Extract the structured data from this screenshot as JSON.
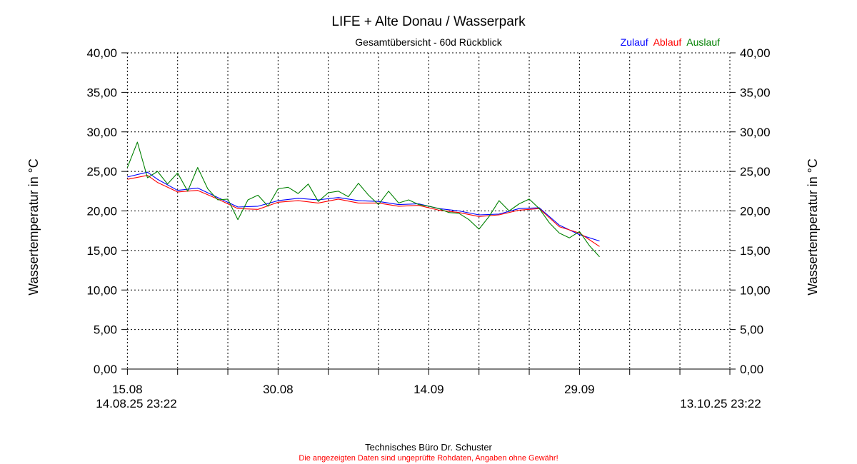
{
  "chart_data": {
    "type": "line",
    "title": "LIFE + Alte Donau / Wasserpark",
    "subtitle": "Gesamtübersicht - 60d Rückblick",
    "ylabel": "Wassertemperatur in °C",
    "ylim": [
      0,
      40
    ],
    "y_ticks": [
      "0,00",
      "5,00",
      "10,00",
      "15,00",
      "20,00",
      "25,00",
      "30,00",
      "35,00",
      "40,00"
    ],
    "x_range": [
      "2025-08-14T23:22",
      "2025-10-13T23:22"
    ],
    "x_tick_labels": [
      {
        "date": "2025-08-15",
        "label": "15.08"
      },
      {
        "date": "2025-08-30",
        "label": "30.08"
      },
      {
        "date": "2025-09-14",
        "label": "14.09"
      },
      {
        "date": "2025-09-29",
        "label": "29.09"
      }
    ],
    "x_minor_ticks": [
      "2025-08-20",
      "2025-08-25",
      "2025-09-04",
      "2025-09-09",
      "2025-09-19",
      "2025-09-24",
      "2025-10-04",
      "2025-10-09"
    ],
    "start_label": "14.08.25 23:22",
    "end_label": "13.10.25 23:22",
    "grid": true,
    "legend_position": "top-right",
    "series": [
      {
        "name": "Zulauf",
        "color": "#0000ff",
        "x": [
          "2025-08-15",
          "2025-08-17",
          "2025-08-18",
          "2025-08-20",
          "2025-08-22",
          "2025-08-24",
          "2025-08-26",
          "2025-08-28",
          "2025-08-30",
          "2025-09-01",
          "2025-09-03",
          "2025-09-05",
          "2025-09-07",
          "2025-09-09",
          "2025-09-11",
          "2025-09-13",
          "2025-09-15",
          "2025-09-17",
          "2025-09-19",
          "2025-09-21",
          "2025-09-23",
          "2025-09-25",
          "2025-09-27",
          "2025-09-29",
          "2025-10-01"
        ],
        "y": [
          24.3,
          24.9,
          24.0,
          22.6,
          22.9,
          21.7,
          20.5,
          20.6,
          21.3,
          21.6,
          21.4,
          21.7,
          21.3,
          21.2,
          20.8,
          20.9,
          20.3,
          20.0,
          19.5,
          19.6,
          20.3,
          20.4,
          18.2,
          17.0,
          16.2
        ]
      },
      {
        "name": "Ablauf",
        "color": "#ff0000",
        "x": [
          "2025-08-15",
          "2025-08-17",
          "2025-08-18",
          "2025-08-20",
          "2025-08-22",
          "2025-08-24",
          "2025-08-26",
          "2025-08-28",
          "2025-08-30",
          "2025-09-01",
          "2025-09-03",
          "2025-09-05",
          "2025-09-07",
          "2025-09-09",
          "2025-09-11",
          "2025-09-13",
          "2025-09-15",
          "2025-09-17",
          "2025-09-19",
          "2025-09-21",
          "2025-09-23",
          "2025-09-25",
          "2025-09-27",
          "2025-09-29",
          "2025-10-01"
        ],
        "y": [
          24.0,
          24.5,
          23.6,
          22.4,
          22.6,
          21.5,
          20.3,
          20.2,
          21.1,
          21.3,
          21.0,
          21.5,
          21.0,
          21.0,
          20.6,
          20.7,
          20.1,
          19.8,
          19.3,
          19.5,
          20.1,
          20.3,
          18.0,
          17.2,
          15.5
        ]
      },
      {
        "name": "Auslauf",
        "color": "#008000",
        "x": [
          "2025-08-15",
          "2025-08-16",
          "2025-08-17",
          "2025-08-18",
          "2025-08-19",
          "2025-08-20",
          "2025-08-21",
          "2025-08-22",
          "2025-08-23",
          "2025-08-24",
          "2025-08-25",
          "2025-08-26",
          "2025-08-27",
          "2025-08-28",
          "2025-08-29",
          "2025-08-30",
          "2025-08-31",
          "2025-09-01",
          "2025-09-02",
          "2025-09-03",
          "2025-09-04",
          "2025-09-05",
          "2025-09-06",
          "2025-09-07",
          "2025-09-08",
          "2025-09-09",
          "2025-09-10",
          "2025-09-11",
          "2025-09-12",
          "2025-09-13",
          "2025-09-14",
          "2025-09-15",
          "2025-09-16",
          "2025-09-17",
          "2025-09-18",
          "2025-09-19",
          "2025-09-20",
          "2025-09-21",
          "2025-09-22",
          "2025-09-23",
          "2025-09-24",
          "2025-09-25",
          "2025-09-26",
          "2025-09-27",
          "2025-09-28",
          "2025-09-29",
          "2025-09-30",
          "2025-10-01"
        ],
        "y": [
          25.5,
          28.7,
          24.2,
          25.0,
          23.4,
          24.8,
          22.5,
          25.5,
          22.8,
          21.4,
          21.5,
          18.9,
          21.4,
          22.0,
          20.6,
          22.8,
          23.0,
          22.2,
          23.4,
          21.2,
          22.3,
          22.5,
          21.8,
          23.5,
          22.0,
          20.8,
          22.5,
          21.0,
          21.4,
          20.8,
          20.6,
          20.3,
          19.8,
          19.7,
          18.9,
          17.7,
          19.3,
          21.3,
          20.0,
          20.9,
          21.5,
          20.3,
          18.5,
          17.2,
          16.6,
          17.4,
          15.6,
          14.2
        ]
      }
    ]
  },
  "footer": {
    "credit": "Technisches Büro Dr. Schuster",
    "disclaimer": "Die angezeigten Daten sind ungeprüfte Rohdaten, Angaben ohne Gewähr!",
    "disclaimer_color": "#ff0000"
  }
}
